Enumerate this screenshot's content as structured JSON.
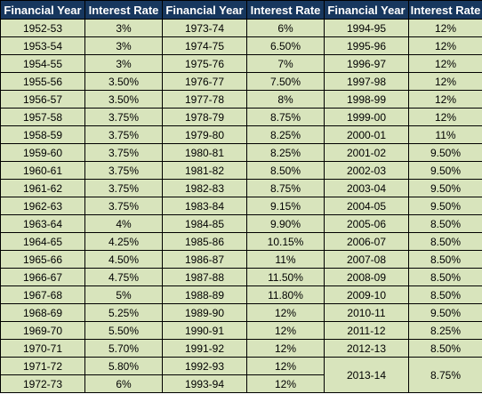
{
  "headers": [
    "Financial Year",
    "Interest Rate",
    "Financial Year",
    "Interest Rate",
    "Financial Year",
    "Interest Rate"
  ],
  "columns": [
    [
      [
        "1952-53",
        "3%"
      ],
      [
        "1953-54",
        "3%"
      ],
      [
        "1954-55",
        "3%"
      ],
      [
        "1955-56",
        "3.50%"
      ],
      [
        "1956-57",
        "3.50%"
      ],
      [
        "1957-58",
        "3.75%"
      ],
      [
        "1958-59",
        "3.75%"
      ],
      [
        "1959-60",
        "3.75%"
      ],
      [
        "1960-61",
        "3.75%"
      ],
      [
        "1961-62",
        "3.75%"
      ],
      [
        "1962-63",
        "3.75%"
      ],
      [
        "1963-64",
        "4%"
      ],
      [
        "1964-65",
        "4.25%"
      ],
      [
        "1965-66",
        "4.50%"
      ],
      [
        "1966-67",
        "4.75%"
      ],
      [
        "1967-68",
        "5%"
      ],
      [
        "1968-69",
        "5.25%"
      ],
      [
        "1969-70",
        "5.50%"
      ],
      [
        "1970-71",
        "5.70%"
      ],
      [
        "1971-72",
        "5.80%"
      ],
      [
        "1972-73",
        "6%"
      ]
    ],
    [
      [
        "1973-74",
        "6%"
      ],
      [
        "1974-75",
        "6.50%"
      ],
      [
        "1975-76",
        "7%"
      ],
      [
        "1976-77",
        "7.50%"
      ],
      [
        "1977-78",
        "8%"
      ],
      [
        "1978-79",
        "8.75%"
      ],
      [
        "1979-80",
        "8.25%"
      ],
      [
        "1980-81",
        "8.25%"
      ],
      [
        "1981-82",
        "8.50%"
      ],
      [
        "1982-83",
        "8.75%"
      ],
      [
        "1983-84",
        "9.15%"
      ],
      [
        "1984-85",
        "9.90%"
      ],
      [
        "1985-86",
        "10.15%"
      ],
      [
        "1986-87",
        "11%"
      ],
      [
        "1987-88",
        "11.50%"
      ],
      [
        "1988-89",
        "11.80%"
      ],
      [
        "1989-90",
        "12%"
      ],
      [
        "1990-91",
        "12%"
      ],
      [
        "1991-92",
        "12%"
      ],
      [
        "1992-93",
        "12%"
      ],
      [
        "1993-94",
        "12%"
      ]
    ],
    [
      [
        "1994-95",
        "12%"
      ],
      [
        "1995-96",
        "12%"
      ],
      [
        "1996-97",
        "12%"
      ],
      [
        "1997-98",
        "12%"
      ],
      [
        "1998-99",
        "12%"
      ],
      [
        "1999-00",
        "12%"
      ],
      [
        "2000-01",
        "11%"
      ],
      [
        "2001-02",
        "9.50%"
      ],
      [
        "2002-03",
        "9.50%"
      ],
      [
        "2003-04",
        "9.50%"
      ],
      [
        "2004-05",
        "9.50%"
      ],
      [
        "2005-06",
        "8.50%"
      ],
      [
        "2006-07",
        "8.50%"
      ],
      [
        "2007-08",
        "8.50%"
      ],
      [
        "2008-09",
        "8.50%"
      ],
      [
        "2009-10",
        "8.50%"
      ],
      [
        "2010-11",
        "9.50%"
      ],
      [
        "2011-12",
        "8.25%"
      ],
      [
        "2012-13",
        "8.50%"
      ],
      [
        "2013-14",
        "8.75%"
      ]
    ]
  ],
  "colors": {
    "header_bg": "#17375e",
    "header_text": "#ffffff",
    "cell_bg": "#d8e4bc",
    "border": "#000000"
  }
}
